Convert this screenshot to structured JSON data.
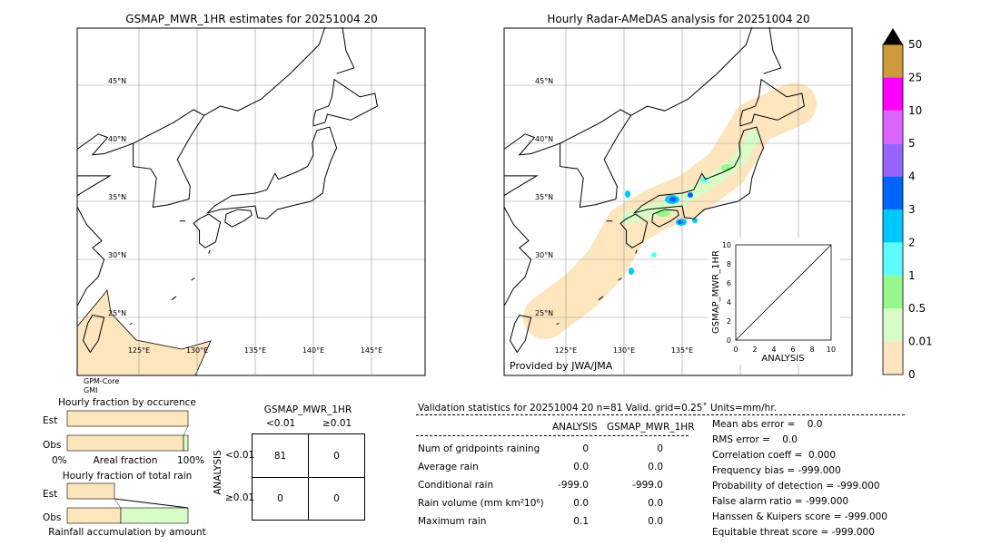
{
  "left_map": {
    "title": "GSMAP_MWR_1HR estimates for 20251004 20",
    "lat_labels": [
      "45°N",
      "40°N",
      "35°N",
      "30°N",
      "25°N"
    ],
    "lon_labels": [
      "125°E",
      "130°E",
      "135°E",
      "140°E",
      "145°E"
    ],
    "sensor": [
      "GPM-Core",
      "GMI"
    ]
  },
  "right_map": {
    "title": "Hourly Radar-AMeDAS analysis for 20251004 20",
    "lat_labels": [
      "45°N",
      "40°N",
      "35°N",
      "30°N",
      "25°N"
    ],
    "lon_labels": [
      "125°E",
      "130°E",
      "135°E"
    ],
    "credit": "Provided by JWA/JMA"
  },
  "colorbar": {
    "levels": [
      "0",
      "0.01",
      "0.5",
      "1",
      "2",
      "3",
      "4",
      "5",
      "10",
      "25",
      "50"
    ],
    "colors": [
      "#fde6be",
      "#d8fcc8",
      "#96f88c",
      "#5cfcfc",
      "#00c8ff",
      "#0064ff",
      "#9664ff",
      "#dc64ff",
      "#ff00ff",
      "#cd9b3c"
    ],
    "extend": "max"
  },
  "chart_data": [
    {
      "type": "scatter",
      "ylabel": "GSMAP_MWR_1HR",
      "xlabel": "ANALYSIS",
      "xlim": [
        0,
        10
      ],
      "ylim": [
        0,
        10
      ],
      "ticks": [
        "0",
        "2",
        "4",
        "6",
        "8",
        "10"
      ],
      "diagonal": true
    },
    {
      "type": "bar",
      "title": "Hourly fraction by occurence",
      "categories": [
        "Est",
        "Obs"
      ],
      "xlabel": "Areal fraction",
      "xtick_labels": [
        "0%",
        "100%"
      ],
      "series": [
        {
          "category": "Est",
          "no_rain_pct": 100,
          "rain_pct": 0
        },
        {
          "category": "Obs",
          "no_rain_pct": 96,
          "rain_pct": 4
        }
      ]
    },
    {
      "type": "bar",
      "title": "Hourly fraction of total rain",
      "categories": [
        "Est",
        "Obs"
      ],
      "xlabel": "Rainfall accumulation by amount",
      "series": [
        {
          "category": "Est",
          "low_pct": 39,
          "high_pct": 0
        },
        {
          "category": "Obs",
          "low_pct": 44,
          "high_pct": 56
        }
      ]
    }
  ],
  "contingency": {
    "title": "GSMAP_MWR_1HR",
    "cols": [
      "<0.01",
      "≥0.01"
    ],
    "row_axis": "ANALYSIS",
    "rows": [
      "<0.01",
      "≥0.01"
    ],
    "cells": [
      [
        "81",
        "0"
      ],
      [
        "0",
        "0"
      ]
    ]
  },
  "validation": {
    "header": "Validation statistics for 20251004 20  n=81 Valid. grid=0.25˚ Units=mm/hr.",
    "cols": [
      "ANALYSIS",
      "GSMAP_MWR_1HR"
    ],
    "rows": [
      {
        "label": "Num of gridpoints raining",
        "a": "0",
        "g": "0"
      },
      {
        "label": "Average rain",
        "a": "0.0",
        "g": "0.0"
      },
      {
        "label": "Conditional rain",
        "a": "-999.0",
        "g": "-999.0"
      },
      {
        "label": "Rain volume (mm km²10⁶)",
        "a": "0.0",
        "g": "0.0"
      },
      {
        "label": "Maximum rain",
        "a": "0.1",
        "g": "0.0"
      }
    ],
    "scores": [
      "Mean abs error =    0.0",
      "RMS error =    0.0",
      "Correlation coeff =  0.000",
      "Frequency bias = -999.000",
      "Probability of detection = -999.000",
      "False alarm ratio = -999.000",
      "Hanssen & Kuipers score = -999.000",
      "Equitable threat score = -999.000"
    ]
  }
}
